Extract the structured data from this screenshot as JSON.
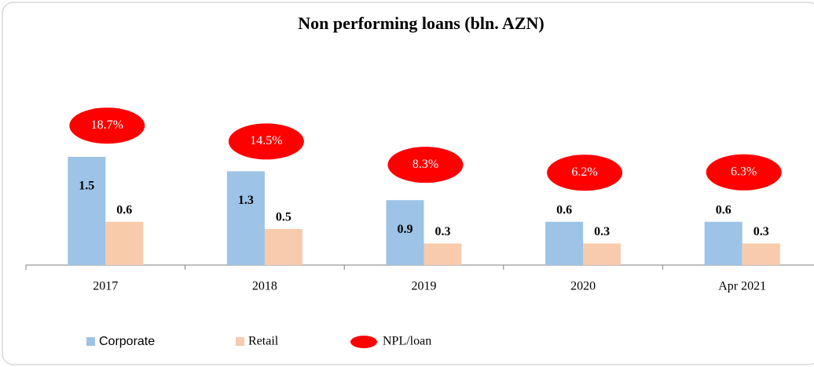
{
  "chart_data": {
    "type": "bar",
    "title": "Non performing loans (bln. AZN)",
    "categories": [
      "2017",
      "2018",
      "2019",
      "2020",
      "Apr 2021"
    ],
    "series": [
      {
        "name": "Corporate",
        "color": "#9dc3e6",
        "values": [
          1.5,
          1.3,
          0.9,
          0.6,
          0.6
        ]
      },
      {
        "name": "Retail",
        "color": "#f8cbad",
        "values": [
          0.6,
          0.5,
          0.3,
          0.3,
          0.3
        ]
      },
      {
        "name": "NPL/loan",
        "color": "#ff0000",
        "axis": "y2",
        "values": [
          18.7,
          14.5,
          8.3,
          6.2,
          6.3
        ],
        "value_labels": [
          "18.7%",
          "14.5%",
          "8.3%",
          "6.2%",
          "6.3%"
        ]
      }
    ]
  }
}
